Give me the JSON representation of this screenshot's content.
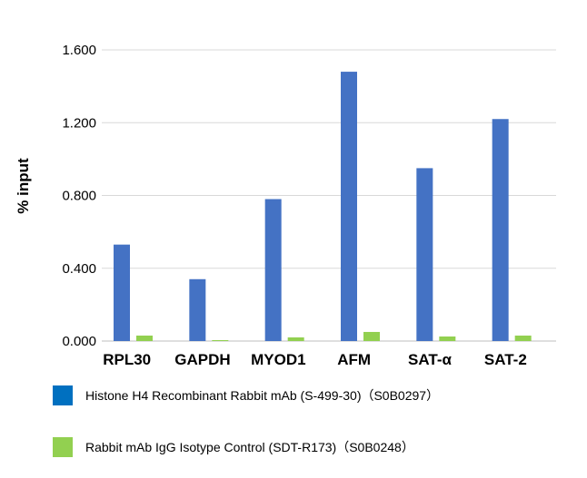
{
  "chart_data": {
    "type": "bar",
    "categories": [
      "RPL30",
      "GAPDH",
      "MYOD1",
      "AFM",
      "SAT-α",
      "SAT-2"
    ],
    "series": [
      {
        "name": "Histone H4 Recombinant Rabbit mAb (S-499-30)（S0B0297）",
        "color": "#4472c4",
        "values": [
          0.53,
          0.34,
          0.78,
          1.48,
          0.95,
          1.22
        ]
      },
      {
        "name": "Rabbit mAb IgG Isotype Control (SDT-R173)（S0B0248）",
        "color": "#92d050",
        "values": [
          0.03,
          0.005,
          0.02,
          0.05,
          0.025,
          0.03
        ]
      }
    ],
    "ylabel": "% input",
    "xlabel": "",
    "ylim": [
      0,
      1.6
    ],
    "yticks": [
      "0.000",
      "0.400",
      "0.800",
      "1.200",
      "1.600"
    ],
    "grid": true,
    "legend_position": "bottom"
  }
}
